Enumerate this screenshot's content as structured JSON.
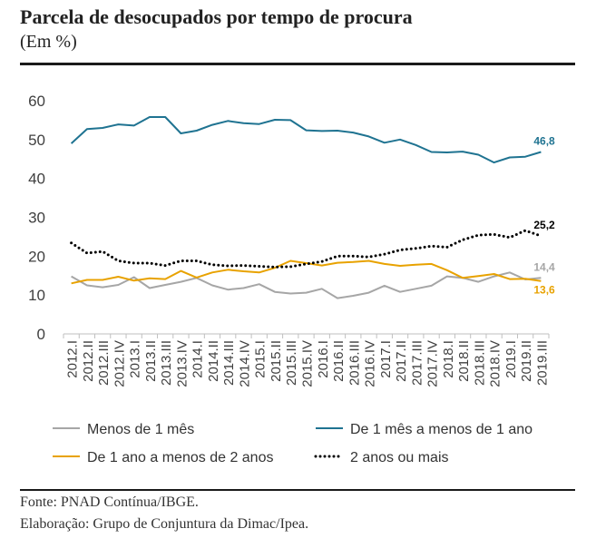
{
  "header": {
    "title": "Parcela de desocupados por tempo de procura",
    "subtitle": "(Em %)"
  },
  "footer": {
    "source": "Fonte: PNAD Contínua/IBGE.",
    "credit": "Elaboração: Grupo de Conjuntura da Dimac/Ipea."
  },
  "chart_data": {
    "type": "line",
    "title": "",
    "xlabel": "",
    "ylabel": "",
    "ylim": [
      0,
      60
    ],
    "yticks": [
      0,
      10,
      20,
      30,
      40,
      50,
      60
    ],
    "grid": false,
    "legend_position": "bottom",
    "categories": [
      "2012.I",
      "2012.II",
      "2012.III",
      "2012.IV",
      "2013.I",
      "2013.II",
      "2013.III",
      "2013.IV",
      "2014.I",
      "2014.II",
      "2014.III",
      "2014.IV",
      "2015.I",
      "2015.II",
      "2015.III",
      "2015.IV",
      "2016.I",
      "2016.II",
      "2016.III",
      "2016.IV",
      "2017.I",
      "2017.II",
      "2017.III",
      "2017.IV",
      "2018.I",
      "2018.II",
      "2018.III",
      "2018.IV",
      "2019.I",
      "2019.II",
      "2019.III"
    ],
    "series": [
      {
        "name": "Menos de 1 mês",
        "color": "#a6a6a6",
        "style": "solid",
        "end_label": "14,4",
        "values": [
          14.8,
          12.5,
          12.0,
          12.6,
          14.6,
          11.8,
          12.6,
          13.4,
          14.4,
          12.5,
          11.4,
          11.8,
          12.8,
          10.8,
          10.4,
          10.6,
          11.6,
          9.2,
          9.8,
          10.6,
          12.4,
          10.8,
          11.6,
          12.4,
          14.8,
          14.4,
          13.4,
          14.8,
          15.8,
          14.0,
          14.4
        ]
      },
      {
        "name": "De 1 mês a menos de 1 ano",
        "color": "#1f7391",
        "style": "solid",
        "end_label": "46,8",
        "values": [
          49.0,
          52.7,
          53.0,
          53.9,
          53.6,
          55.8,
          55.8,
          51.6,
          52.3,
          53.8,
          54.8,
          54.2,
          54.0,
          55.1,
          55.0,
          52.4,
          52.2,
          52.3,
          51.8,
          50.8,
          49.2,
          50.0,
          48.6,
          46.8,
          46.7,
          46.9,
          46.1,
          44.1,
          45.4,
          45.6,
          46.8
        ]
      },
      {
        "name": "De 1 ano a menos de 2 anos",
        "color": "#e8a200",
        "style": "solid",
        "end_label": "13,6",
        "values": [
          13.0,
          13.9,
          13.9,
          14.7,
          13.7,
          14.3,
          14.1,
          16.2,
          14.5,
          15.8,
          16.5,
          16.1,
          15.8,
          17.0,
          18.8,
          18.2,
          17.6,
          18.3,
          18.5,
          18.8,
          18.0,
          17.5,
          17.8,
          18.0,
          16.4,
          14.4,
          14.9,
          15.4,
          14.1,
          14.2,
          13.6
        ]
      },
      {
        "name": "2 anos ou mais",
        "color": "#000000",
        "style": "dotted",
        "end_label": "25,2",
        "values": [
          23.4,
          20.8,
          21.2,
          18.8,
          18.2,
          18.2,
          17.6,
          18.8,
          18.8,
          17.8,
          17.5,
          17.6,
          17.4,
          17.2,
          17.3,
          18.0,
          18.6,
          20.0,
          20.0,
          19.8,
          20.5,
          21.6,
          22.0,
          22.6,
          22.3,
          24.2,
          25.4,
          25.6,
          24.8,
          26.6,
          25.2
        ]
      }
    ]
  }
}
